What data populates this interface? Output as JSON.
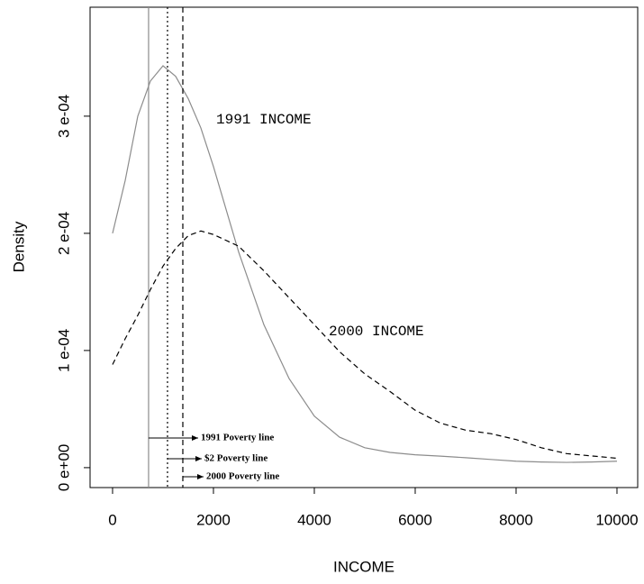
{
  "chart_data": {
    "type": "line",
    "xlabel": "INCOME",
    "ylabel": "Density",
    "xlim": [
      -446,
      10411
    ],
    "ylim": [
      -1.7e-05,
      0.000393
    ],
    "xticks": [
      0,
      2000,
      4000,
      6000,
      8000,
      10000
    ],
    "yticks": [
      {
        "value": 0,
        "label": "0 e+00"
      },
      {
        "value": 0.0001,
        "label": "1 e-04"
      },
      {
        "value": 0.0002,
        "label": "2 e-04"
      },
      {
        "value": 0.0003,
        "label": "3 e-04"
      }
    ],
    "x": [
      0,
      250,
      500,
      750,
      1000,
      1250,
      1500,
      1750,
      2000,
      2500,
      3000,
      3500,
      4000,
      4500,
      5000,
      5500,
      6000,
      6500,
      7000,
      7500,
      8000,
      8500,
      9000,
      9500,
      10000
    ],
    "series": [
      {
        "name": "1991 INCOME",
        "color": "#8c8c8c",
        "dash": "solid",
        "values": [
          0.0002,
          0.000245,
          0.0003,
          0.00033,
          0.000343,
          0.000334,
          0.000315,
          0.00029,
          0.000257,
          0.000184,
          0.000122,
          7.6e-05,
          4.4e-05,
          2.6e-05,
          1.7e-05,
          1.3e-05,
          1.1e-05,
          9.8e-06,
          8.5e-06,
          7e-06,
          5.5e-06,
          4.8e-06,
          4.5e-06,
          4.8e-06,
          5.5e-06
        ]
      },
      {
        "name": "2000 INCOME",
        "color": "#000000",
        "dash": "dashed",
        "values": [
          8.8e-05,
          0.00011,
          0.00013,
          0.000152,
          0.000172,
          0.000187,
          0.000198,
          0.000202,
          0.000199,
          0.000189,
          0.000168,
          0.000145,
          0.000122,
          9.9e-05,
          8e-05,
          6.5e-05,
          4.9e-05,
          3.8e-05,
          3.2e-05,
          2.9e-05,
          2.4e-05,
          1.7e-05,
          1.2e-05,
          1e-05,
          8e-06
        ]
      }
    ],
    "vlines": [
      {
        "label": "1991 Poverty line",
        "value": 714,
        "color": "#8c8c8c",
        "dash": "solid"
      },
      {
        "label": "$2 Poverty line",
        "value": 1089,
        "color": "#000000",
        "dash": "dotted"
      },
      {
        "label": "2000 Poverty line",
        "value": 1393,
        "color": "#000000",
        "dash": "dashed"
      }
    ]
  }
}
